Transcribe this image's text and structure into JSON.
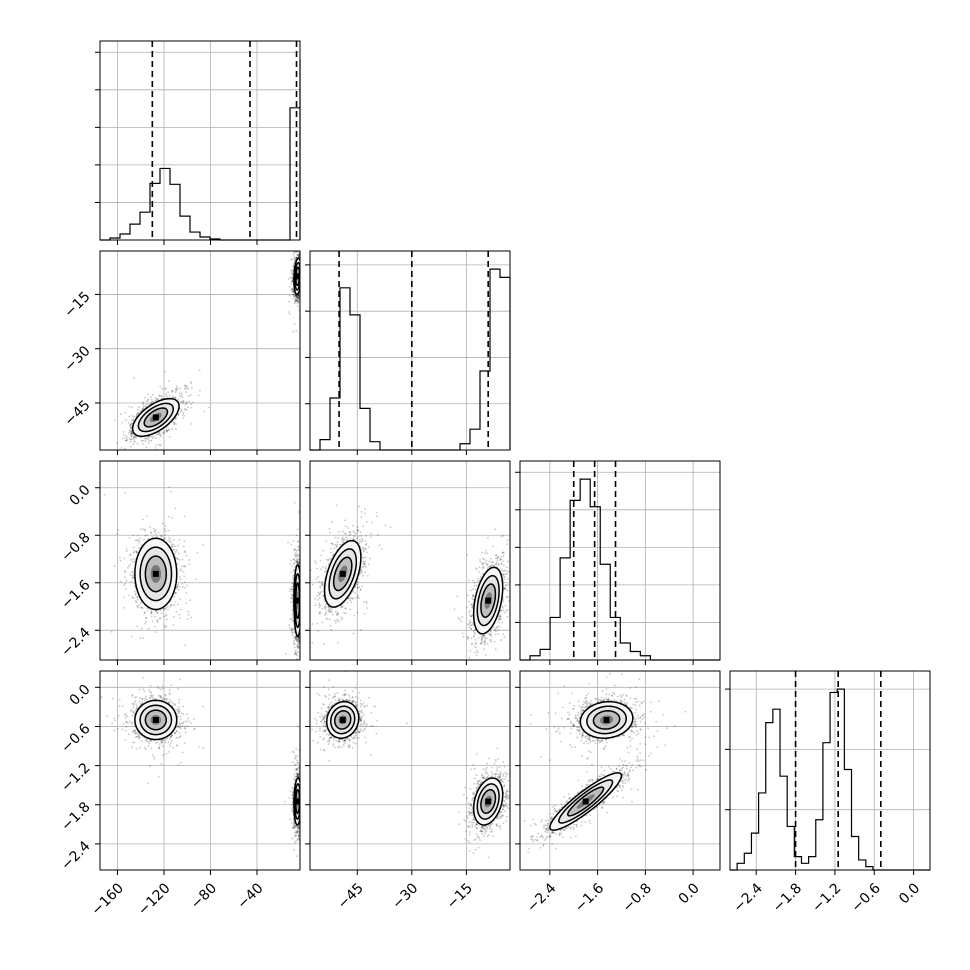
{
  "chart_data": {
    "type": "corner",
    "parameters": [
      {
        "id": "p0",
        "range": [
          -175,
          -3
        ],
        "ticks": [
          -160,
          -120,
          -80,
          -40
        ],
        "tick_labels": [
          "−160",
          "−120",
          "−80",
          "−40"
        ],
        "quantiles": [
          -130,
          -46,
          -6
        ],
        "hist": {
          "edges_start": -175,
          "bin_width": 8.6,
          "counts": [
            0,
            0.02,
            0.06,
            0.16,
            0.28,
            0.57,
            0.72,
            0.56,
            0.24,
            0.08,
            0.03,
            0.01,
            0,
            0,
            0,
            0,
            0,
            0,
            0,
            1.33,
            1.82,
            0
          ]
        },
        "modes": [
          {
            "center": -127,
            "spread": 8,
            "weight": 0.5
          },
          {
            "center": -5,
            "spread": 1.6,
            "weight": 0.5
          }
        ]
      },
      {
        "id": "p1",
        "range": [
          -58,
          -3
        ],
        "ticks": [
          -45,
          -30,
          -15
        ],
        "tick_labels": [
          "−45",
          "−30",
          "−15"
        ],
        "quantiles": [
          -50,
          -30,
          -9
        ],
        "hist": {
          "edges_start": -58,
          "bin_width": 2.75,
          "counts": [
            0,
            0.05,
            0.25,
            0.78,
            0.65,
            0.2,
            0.04,
            0,
            0,
            0,
            0,
            0,
            0,
            0,
            0,
            0.03,
            0.1,
            0.38,
            0.87,
            0.83,
            0.09
          ]
        },
        "modes": [
          {
            "center": -49,
            "spread": 2.5,
            "weight": 0.5
          },
          {
            "center": -9,
            "spread": 2,
            "weight": 0.5
          }
        ]
      },
      {
        "id": "p2",
        "range": [
          -2.9,
          0.45
        ],
        "ticks": [
          -2.4,
          -1.6,
          -0.8,
          0.0
        ],
        "tick_labels": [
          "−2.4",
          "−1.6",
          "−0.8",
          "0.0"
        ],
        "quantiles": [
          -2.0,
          -1.65,
          -1.3
        ],
        "hist": {
          "edges_start": -2.9,
          "bin_width": 0.168,
          "counts": [
            0,
            0.02,
            0.05,
            0.2,
            0.48,
            0.75,
            0.85,
            0.72,
            0.45,
            0.2,
            0.08,
            0.04,
            0.02,
            0,
            0,
            0,
            0,
            0,
            0,
            0
          ]
        },
        "modes": [
          {
            "center": -1.65,
            "spread": 0.28,
            "weight": 1.0
          }
        ]
      },
      {
        "id": "p3",
        "range": [
          -2.8,
          0.25
        ],
        "ticks": [
          -2.4,
          -1.8,
          -1.2,
          -0.6,
          0.0
        ],
        "tick_labels": [
          "−2.4",
          "−1.8",
          "−1.2",
          "−0.6",
          "0.0"
        ],
        "quantiles": [
          -1.8,
          -1.15,
          -0.5
        ],
        "hist": {
          "edges_start": -2.8,
          "bin_width": 0.109,
          "counts": [
            0,
            0.02,
            0.05,
            0.11,
            0.23,
            0.44,
            0.48,
            0.28,
            0.13,
            0.04,
            0.02,
            0.04,
            0.15,
            0.38,
            0.53,
            0.54,
            0.3,
            0.1,
            0.03,
            0.01,
            0,
            0,
            0,
            0,
            0,
            0,
            0,
            0
          ]
        },
        "modes": [
          {
            "center": -1.75,
            "spread": 0.17,
            "weight": 0.5
          },
          {
            "center": -0.5,
            "spread": 0.13,
            "weight": 0.5
          }
        ]
      }
    ],
    "pairs": [
      {
        "x": "p0",
        "y": "p1",
        "blobs": [
          {
            "cx": -127,
            "cy": -49,
            "sx": 10,
            "sy": 2.6,
            "rho": 0.6
          },
          {
            "cx": -5,
            "cy": -10,
            "sx": 1.6,
            "sy": 2.5,
            "rho": 0.2
          }
        ]
      },
      {
        "x": "p0",
        "y": "p2",
        "blobs": [
          {
            "cx": -127,
            "cy": -1.45,
            "sx": 9,
            "sy": 0.3,
            "rho": 0.0
          },
          {
            "cx": -5,
            "cy": -1.9,
            "sx": 1.6,
            "sy": 0.3,
            "rho": 0.0
          }
        ]
      },
      {
        "x": "p1",
        "y": "p2",
        "blobs": [
          {
            "cx": -49,
            "cy": -1.45,
            "sx": 2.5,
            "sy": 0.28,
            "rho": 0.5
          },
          {
            "cx": -9,
            "cy": -1.9,
            "sx": 2.0,
            "sy": 0.28,
            "rho": 0.4
          }
        ]
      },
      {
        "x": "p0",
        "y": "p3",
        "blobs": [
          {
            "cx": -127,
            "cy": -0.5,
            "sx": 9,
            "sy": 0.15,
            "rho": 0.0
          },
          {
            "cx": -5,
            "cy": -1.75,
            "sx": 1.6,
            "sy": 0.18,
            "rho": 0.1
          }
        ]
      },
      {
        "x": "p1",
        "y": "p3",
        "blobs": [
          {
            "cx": -49,
            "cy": -0.5,
            "sx": 2.2,
            "sy": 0.14,
            "rho": 0.1
          },
          {
            "cx": -9,
            "cy": -1.75,
            "sx": 2.0,
            "sy": 0.18,
            "rho": 0.3
          }
        ]
      },
      {
        "x": "p2",
        "y": "p3",
        "blobs": [
          {
            "cx": -1.45,
            "cy": -0.5,
            "sx": 0.22,
            "sy": 0.14,
            "rho": 0.1
          },
          {
            "cx": -1.8,
            "cy": -1.75,
            "sx": 0.3,
            "sy": 0.22,
            "rho": 0.9
          }
        ]
      }
    ],
    "diag_ticks": [
      {
        "param": "p0",
        "y_ticks": 5
      },
      {
        "param": "p1",
        "y_ticks": 4
      },
      {
        "param": "p2",
        "y_ticks": 5
      },
      {
        "param": "p3",
        "y_ticks": 3
      }
    ],
    "grid": true,
    "legend": "none"
  }
}
